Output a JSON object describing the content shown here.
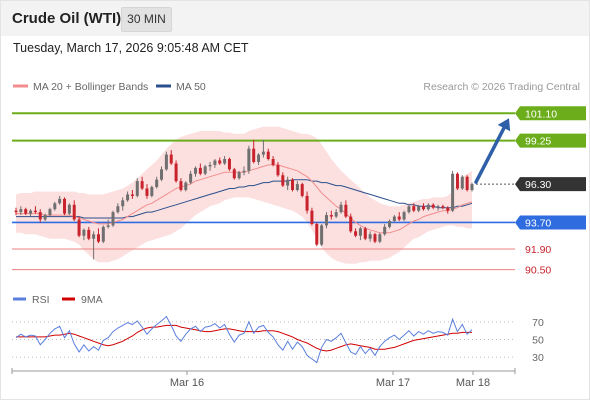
{
  "header": {
    "title": "Crude Oil (WTI)",
    "timeframe": "30 MIN"
  },
  "timestamp": "Tuesday, March 17, 2026 9:05:48 AM CET",
  "legend": {
    "ma20_label": "MA 20 + Bollinger Bands",
    "ma50_label": "MA 50",
    "credit": "Research © 2026 Trading Central",
    "rsi_label": "RSI",
    "rsi_ma_label": "9MA"
  },
  "colors": {
    "up": "#6f6f6f",
    "down": "#c8232c",
    "ma20": "#f28c8c",
    "ma50": "#2a4f8c",
    "bands": "#fbdada",
    "resistance": "#6cad1c",
    "support": "#2f6ce0",
    "minor": "#ee8080",
    "arrow": "#2f5fa8",
    "rsi": "#5b7fdc",
    "rsi_ma": "#d00000",
    "current": "#333333"
  },
  "chart_data": [
    {
      "type": "candlestick",
      "title": "Crude Oil (WTI)",
      "timeframe": "30 MIN",
      "x_ticks": [
        "Mar 16",
        "Mar 17",
        "Mar 18"
      ],
      "ylim": [
        89.8,
        102.0
      ],
      "levels": [
        {
          "value": 101.1,
          "label": "101.10",
          "kind": "resistance"
        },
        {
          "value": 99.25,
          "label": "99.25",
          "kind": "resistance"
        },
        {
          "value": 96.3,
          "label": "96.30",
          "kind": "current"
        },
        {
          "value": 93.7,
          "label": "93.70",
          "kind": "support"
        },
        {
          "value": 91.9,
          "label": "91.90",
          "kind": "minor"
        },
        {
          "value": 90.5,
          "label": "90.50",
          "kind": "minor"
        }
      ],
      "arrow": {
        "from": 96.3,
        "to": 101.1
      },
      "candles": [
        [
          94.5,
          94.7,
          94.2,
          94.4
        ],
        [
          94.4,
          94.8,
          94.2,
          94.6
        ],
        [
          94.6,
          94.7,
          94.2,
          94.3
        ],
        [
          94.3,
          94.6,
          94.1,
          94.5
        ],
        [
          94.5,
          94.8,
          94.3,
          94.4
        ],
        [
          94.4,
          94.6,
          93.7,
          93.9
        ],
        [
          93.9,
          94.3,
          93.8,
          94.2
        ],
        [
          94.2,
          94.7,
          94.1,
          94.6
        ],
        [
          94.6,
          95.1,
          94.5,
          95.0
        ],
        [
          95.0,
          95.5,
          94.9,
          95.3
        ],
        [
          95.3,
          95.4,
          94.2,
          94.3
        ],
        [
          94.3,
          95.0,
          94.2,
          94.9
        ],
        [
          94.9,
          95.2,
          93.8,
          93.9
        ],
        [
          93.9,
          94.1,
          92.7,
          92.8
        ],
        [
          92.8,
          93.3,
          92.5,
          93.2
        ],
        [
          93.2,
          93.4,
          92.5,
          92.6
        ],
        [
          92.6,
          93.1,
          91.2,
          92.9
        ],
        [
          92.9,
          93.3,
          92.3,
          92.4
        ],
        [
          92.4,
          93.5,
          92.3,
          93.4
        ],
        [
          93.4,
          93.9,
          93.3,
          93.5
        ],
        [
          93.5,
          94.5,
          93.4,
          94.4
        ],
        [
          94.4,
          95.0,
          94.3,
          94.8
        ],
        [
          94.8,
          95.4,
          94.5,
          95.2
        ],
        [
          95.2,
          95.8,
          95.1,
          95.6
        ],
        [
          95.6,
          95.9,
          95.3,
          95.5
        ],
        [
          95.5,
          96.7,
          95.4,
          96.5
        ],
        [
          96.5,
          96.8,
          95.9,
          96.0
        ],
        [
          96.0,
          96.3,
          95.3,
          95.5
        ],
        [
          95.5,
          96.2,
          95.4,
          96.1
        ],
        [
          96.1,
          96.8,
          96.0,
          96.6
        ],
        [
          96.6,
          97.5,
          96.5,
          97.3
        ],
        [
          97.3,
          98.5,
          97.2,
          98.3
        ],
        [
          98.3,
          98.6,
          97.6,
          97.7
        ],
        [
          97.7,
          97.9,
          96.4,
          96.5
        ],
        [
          96.5,
          96.7,
          95.8,
          95.9
        ],
        [
          95.9,
          96.5,
          95.8,
          96.4
        ],
        [
          96.4,
          97.2,
          96.3,
          97.0
        ],
        [
          97.0,
          97.5,
          96.8,
          97.4
        ],
        [
          97.4,
          97.7,
          96.9,
          97.0
        ],
        [
          97.0,
          97.6,
          96.9,
          97.5
        ],
        [
          97.5,
          97.8,
          97.2,
          97.6
        ],
        [
          97.6,
          98.0,
          97.4,
          97.9
        ],
        [
          97.9,
          98.1,
          97.6,
          97.7
        ],
        [
          97.7,
          98.2,
          97.6,
          98.0
        ],
        [
          98.0,
          98.1,
          97.2,
          97.3
        ],
        [
          97.3,
          97.4,
          96.6,
          96.7
        ],
        [
          96.7,
          97.2,
          96.6,
          97.1
        ],
        [
          97.1,
          97.5,
          96.9,
          97.2
        ],
        [
          97.2,
          98.9,
          97.0,
          98.7
        ],
        [
          98.7,
          99.3,
          97.7,
          97.8
        ],
        [
          97.8,
          98.4,
          97.6,
          98.3
        ],
        [
          98.3,
          99.3,
          98.1,
          98.5
        ],
        [
          98.5,
          98.7,
          97.9,
          98.0
        ],
        [
          98.0,
          98.2,
          97.5,
          97.6
        ],
        [
          97.6,
          97.8,
          96.8,
          96.9
        ],
        [
          96.9,
          97.1,
          96.1,
          96.2
        ],
        [
          96.2,
          96.8,
          95.9,
          96.6
        ],
        [
          96.6,
          96.7,
          95.8,
          95.9
        ],
        [
          95.9,
          96.5,
          95.8,
          96.3
        ],
        [
          96.3,
          96.4,
          95.4,
          95.5
        ],
        [
          95.5,
          95.8,
          94.3,
          94.5
        ],
        [
          94.5,
          94.7,
          93.5,
          93.6
        ],
        [
          93.6,
          93.7,
          92.1,
          92.2
        ],
        [
          92.2,
          93.6,
          92.1,
          93.5
        ],
        [
          93.5,
          94.4,
          93.3,
          94.2
        ],
        [
          94.2,
          94.5,
          93.9,
          94.1
        ],
        [
          94.1,
          94.6,
          94.0,
          94.4
        ],
        [
          94.4,
          95.1,
          94.3,
          94.9
        ],
        [
          94.9,
          95.2,
          94.0,
          94.1
        ],
        [
          94.1,
          94.3,
          93.0,
          93.1
        ],
        [
          93.1,
          93.3,
          92.7,
          92.8
        ],
        [
          92.8,
          93.4,
          92.5,
          93.3
        ],
        [
          93.3,
          93.4,
          92.5,
          92.6
        ],
        [
          92.6,
          93.1,
          92.4,
          92.9
        ],
        [
          92.9,
          93.0,
          92.3,
          92.4
        ],
        [
          92.4,
          93.0,
          92.3,
          92.9
        ],
        [
          92.9,
          93.6,
          92.8,
          93.4
        ],
        [
          93.4,
          93.9,
          93.3,
          93.8
        ],
        [
          93.8,
          94.2,
          93.7,
          94.1
        ],
        [
          94.1,
          94.4,
          93.8,
          93.9
        ],
        [
          93.9,
          94.5,
          93.8,
          94.4
        ],
        [
          94.4,
          94.9,
          94.3,
          94.8
        ],
        [
          94.8,
          95.0,
          94.4,
          94.5
        ],
        [
          94.5,
          94.9,
          94.4,
          94.8
        ],
        [
          94.8,
          95.0,
          94.5,
          94.6
        ],
        [
          94.6,
          95.0,
          94.5,
          94.9
        ],
        [
          94.9,
          95.0,
          94.6,
          94.7
        ],
        [
          94.7,
          94.9,
          94.5,
          94.8
        ],
        [
          94.8,
          94.9,
          94.6,
          94.7
        ],
        [
          94.7,
          94.8,
          94.3,
          94.5
        ],
        [
          94.5,
          97.2,
          94.4,
          97.0
        ],
        [
          97.0,
          97.1,
          95.9,
          96.0
        ],
        [
          96.0,
          96.9,
          95.9,
          96.8
        ],
        [
          96.8,
          96.9,
          95.8,
          95.9
        ],
        [
          95.9,
          96.4,
          95.8,
          96.3
        ]
      ],
      "ma20": [
        94.3,
        94.3,
        94.3,
        94.3,
        94.3,
        94.3,
        94.2,
        94.2,
        94.2,
        94.2,
        94.2,
        94.2,
        94.1,
        94.0,
        93.9,
        93.8,
        93.7,
        93.6,
        93.6,
        93.6,
        93.7,
        93.8,
        93.9,
        94.1,
        94.3,
        94.5,
        94.7,
        94.9,
        95.0,
        95.2,
        95.4,
        95.6,
        95.8,
        96.0,
        96.1,
        96.2,
        96.3,
        96.5,
        96.6,
        96.7,
        96.8,
        96.9,
        97.0,
        97.1,
        97.1,
        97.1,
        97.1,
        97.1,
        97.2,
        97.3,
        97.4,
        97.5,
        97.6,
        97.6,
        97.6,
        97.5,
        97.4,
        97.3,
        97.2,
        97.0,
        96.8,
        96.5,
        96.1,
        95.7,
        95.4,
        95.1,
        94.8,
        94.6,
        94.3,
        94.0,
        93.7,
        93.5,
        93.3,
        93.2,
        93.1,
        93.0,
        93.0,
        93.0,
        93.1,
        93.2,
        93.4,
        93.6,
        93.8,
        93.9,
        94.1,
        94.2,
        94.3,
        94.4,
        94.5,
        94.5,
        94.6,
        94.7,
        94.9,
        95.0,
        95.1
      ],
      "ma50": [
        94.1,
        94.1,
        94.1,
        94.1,
        94.1,
        94.1,
        94.1,
        94.1,
        94.1,
        94.1,
        94.1,
        94.1,
        94.1,
        94.1,
        94.0,
        94.0,
        94.0,
        94.0,
        94.0,
        94.0,
        94.0,
        94.0,
        94.0,
        94.1,
        94.1,
        94.2,
        94.3,
        94.4,
        94.4,
        94.5,
        94.6,
        94.7,
        94.8,
        94.9,
        95.0,
        95.1,
        95.2,
        95.3,
        95.4,
        95.5,
        95.6,
        95.7,
        95.8,
        95.9,
        96.0,
        96.0,
        96.1,
        96.1,
        96.2,
        96.2,
        96.3,
        96.4,
        96.4,
        96.5,
        96.5,
        96.5,
        96.5,
        96.6,
        96.6,
        96.6,
        96.6,
        96.5,
        96.5,
        96.4,
        96.4,
        96.3,
        96.2,
        96.2,
        96.1,
        96.0,
        95.9,
        95.8,
        95.7,
        95.6,
        95.5,
        95.4,
        95.3,
        95.2,
        95.1,
        95.0,
        95.0,
        94.9,
        94.9,
        94.8,
        94.8,
        94.8,
        94.8,
        94.7,
        94.7,
        94.7,
        94.7,
        94.8,
        94.8,
        94.9,
        95.0
      ],
      "bb_upper": [
        95.6,
        95.7,
        95.7,
        95.7,
        95.8,
        95.8,
        95.8,
        95.8,
        95.8,
        95.8,
        95.8,
        95.8,
        95.8,
        95.7,
        95.7,
        95.6,
        95.6,
        95.6,
        95.6,
        95.7,
        95.8,
        95.9,
        96.0,
        96.2,
        96.4,
        96.7,
        97.0,
        97.3,
        97.6,
        97.9,
        98.3,
        98.7,
        99.0,
        99.3,
        99.5,
        99.6,
        99.7,
        99.8,
        99.9,
        99.9,
        99.9,
        99.9,
        99.9,
        99.8,
        99.8,
        99.7,
        99.7,
        99.7,
        99.9,
        100.0,
        100.1,
        100.2,
        100.2,
        100.2,
        100.2,
        100.1,
        100.0,
        99.9,
        99.8,
        99.7,
        99.7,
        99.6,
        99.4,
        99.0,
        98.5,
        98.0,
        97.6,
        97.2,
        96.9,
        96.6,
        96.3,
        96.0,
        95.7,
        95.4,
        95.2,
        95.0,
        94.9,
        94.8,
        94.8,
        94.8,
        94.9,
        95.0,
        95.1,
        95.2,
        95.3,
        95.3,
        95.4,
        95.4,
        95.4,
        95.5,
        95.8,
        96.3,
        96.8,
        97.0,
        97.2
      ],
      "bb_lower": [
        93.0,
        93.0,
        92.9,
        92.9,
        92.9,
        92.8,
        92.7,
        92.6,
        92.6,
        92.6,
        92.6,
        92.5,
        92.4,
        92.2,
        91.8,
        91.5,
        91.2,
        91.0,
        91.0,
        91.0,
        91.1,
        91.2,
        91.4,
        91.6,
        91.8,
        92.0,
        92.2,
        92.4,
        92.5,
        92.6,
        92.7,
        92.8,
        92.9,
        93.1,
        93.3,
        93.6,
        93.9,
        94.2,
        94.4,
        94.6,
        94.8,
        94.9,
        95.0,
        95.2,
        95.3,
        95.4,
        95.4,
        95.4,
        95.4,
        95.3,
        95.2,
        95.1,
        95.0,
        94.9,
        94.8,
        94.7,
        94.6,
        94.5,
        94.3,
        94.1,
        93.7,
        93.2,
        92.6,
        92.0,
        91.6,
        91.3,
        91.1,
        91.0,
        90.9,
        90.9,
        90.9,
        91.0,
        91.0,
        91.1,
        91.1,
        91.1,
        91.2,
        91.3,
        91.5,
        91.7,
        92.0,
        92.3,
        92.6,
        92.7,
        92.9,
        93.1,
        93.2,
        93.3,
        93.4,
        93.5,
        93.5,
        93.4,
        93.4,
        93.3,
        93.3
      ]
    },
    {
      "type": "line",
      "title": "RSI",
      "ylim": [
        20,
        80
      ],
      "y_ticks": [
        70,
        50,
        30
      ],
      "series": [
        {
          "name": "RSI",
          "values": [
            52,
            56,
            53,
            55,
            54,
            44,
            50,
            57,
            62,
            65,
            52,
            60,
            45,
            36,
            44,
            37,
            42,
            38,
            49,
            52,
            59,
            63,
            66,
            69,
            67,
            71,
            64,
            56,
            62,
            67,
            71,
            76,
            66,
            54,
            48,
            56,
            62,
            65,
            59,
            64,
            65,
            68,
            63,
            67,
            56,
            47,
            55,
            57,
            70,
            57,
            64,
            66,
            58,
            53,
            44,
            38,
            48,
            39,
            47,
            42,
            32,
            28,
            24,
            41,
            50,
            48,
            52,
            57,
            46,
            36,
            33,
            42,
            34,
            40,
            32,
            42,
            48,
            52,
            55,
            50,
            55,
            60,
            54,
            59,
            56,
            60,
            57,
            59,
            58,
            55,
            73,
            59,
            67,
            56,
            61
          ]
        },
        {
          "name": "9MA",
          "values": [
            53,
            53,
            53,
            53,
            53,
            53,
            53,
            54,
            55,
            55,
            56,
            57,
            56,
            54,
            52,
            50,
            48,
            46,
            44,
            43,
            44,
            46,
            48,
            51,
            54,
            58,
            61,
            63,
            64,
            64,
            65,
            66,
            66,
            66,
            64,
            63,
            62,
            61,
            60,
            59,
            59,
            60,
            61,
            62,
            62,
            61,
            60,
            59,
            59,
            59,
            59,
            60,
            60,
            60,
            59,
            57,
            55,
            53,
            50,
            48,
            46,
            43,
            40,
            38,
            37,
            38,
            40,
            42,
            44,
            45,
            44,
            43,
            42,
            41,
            39,
            39,
            39,
            40,
            41,
            43,
            45,
            47,
            49,
            50,
            51,
            52,
            53,
            54,
            55,
            56,
            57,
            57,
            58,
            58,
            58
          ]
        }
      ]
    }
  ]
}
